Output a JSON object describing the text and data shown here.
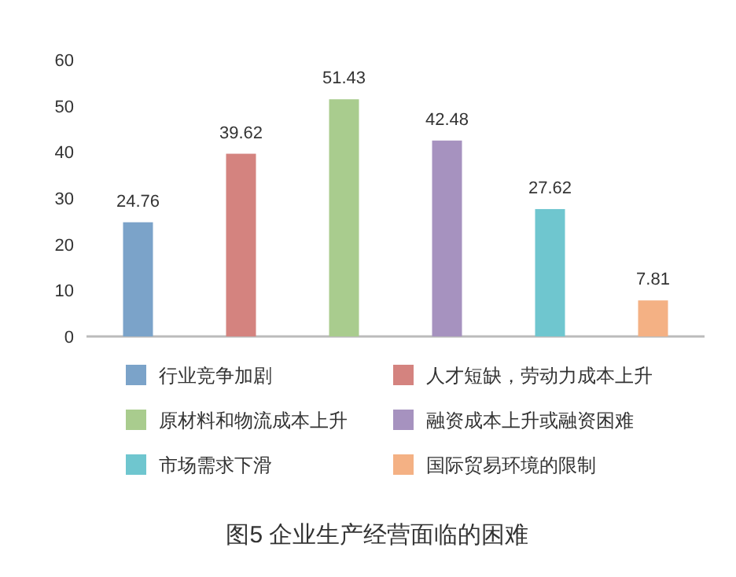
{
  "chart_data": {
    "type": "bar",
    "title": "图5  企业生产经营面临的困难",
    "categories": [
      null
    ],
    "series": [
      {
        "name": "行业竞争加剧",
        "color": "#7ba3c9",
        "values": [
          24.76
        ]
      },
      {
        "name": "人才短缺，劳动力成本上升",
        "color": "#d4837f",
        "values": [
          39.62
        ]
      },
      {
        "name": "原材料和物流成本上升",
        "color": "#a9cc8e",
        "values": [
          51.43
        ]
      },
      {
        "name": "融资成本上升或融资困难",
        "color": "#a692bf",
        "values": [
          42.48
        ]
      },
      {
        "name": "市场需求下滑",
        "color": "#6fc6cf",
        "values": [
          27.62
        ]
      },
      {
        "name": "国际贸易环境的限制",
        "color": "#f4b184",
        "values": [
          7.81
        ]
      }
    ],
    "ylim": [
      0,
      60
    ],
    "yticks": [
      0,
      10,
      20,
      30,
      40,
      50,
      60
    ],
    "data_labels": true,
    "legend": "bottom",
    "tick_labels": "y"
  }
}
